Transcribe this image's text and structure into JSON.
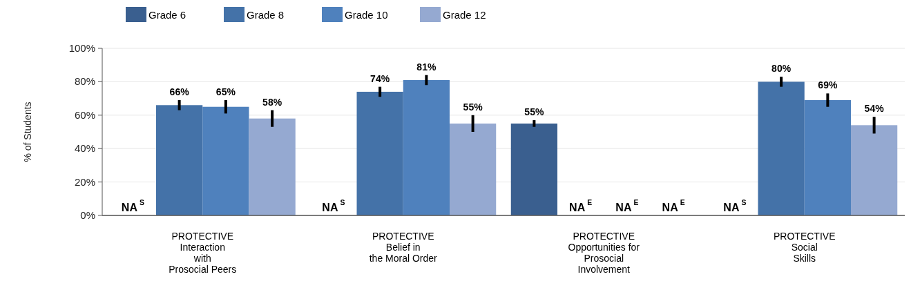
{
  "chart_data": {
    "type": "bar",
    "ylabel": "% of Students",
    "categories": [
      "PROTECTIVE\nInteraction\nwith\nProsocial Peers",
      "PROTECTIVE\nBelief in\nthe Moral Order",
      "PROTECTIVE\nOpportunities for\nProsocial\nInvolvement",
      "PROTECTIVE\nSocial\nSkills"
    ],
    "series": [
      {
        "name": "Grade 6",
        "color": "#3a5f8f",
        "values": [
          null,
          null,
          55,
          null
        ],
        "errors": [
          null,
          null,
          2,
          null
        ],
        "value_labels": [
          "NA$^{S}$",
          "NA$^{S}$",
          "55%",
          "NA$^{S}$"
        ]
      },
      {
        "name": "Grade 8",
        "color": "#4472a8",
        "values": [
          66,
          74,
          null,
          80
        ],
        "errors": [
          3,
          3,
          null,
          3
        ],
        "value_labels": [
          "66%",
          "74%",
          "NA$^{E}$",
          "80%"
        ]
      },
      {
        "name": "Grade 10",
        "color": "#4f81bd",
        "values": [
          65,
          81,
          null,
          69
        ],
        "errors": [
          4,
          3,
          null,
          4
        ],
        "value_labels": [
          "65%",
          "81%",
          "NA$^{E}$",
          "69%"
        ]
      },
      {
        "name": "Grade 12",
        "color": "#95a9d1",
        "values": [
          58,
          55,
          null,
          54
        ],
        "errors": [
          5,
          5,
          null,
          5
        ],
        "value_labels": [
          "58%",
          "55%",
          "NA$^{E}$",
          "54%"
        ]
      }
    ],
    "ylim": [
      0,
      100
    ],
    "yticks": [
      {
        "value": 0,
        "label": "0%"
      },
      {
        "value": 20,
        "label": "20%"
      },
      {
        "value": 40,
        "label": "40%"
      },
      {
        "value": 60,
        "label": "60%"
      },
      {
        "value": 80,
        "label": "80%"
      },
      {
        "value": 100,
        "label": "100%"
      }
    ],
    "grid": "y",
    "legend": "top left"
  }
}
